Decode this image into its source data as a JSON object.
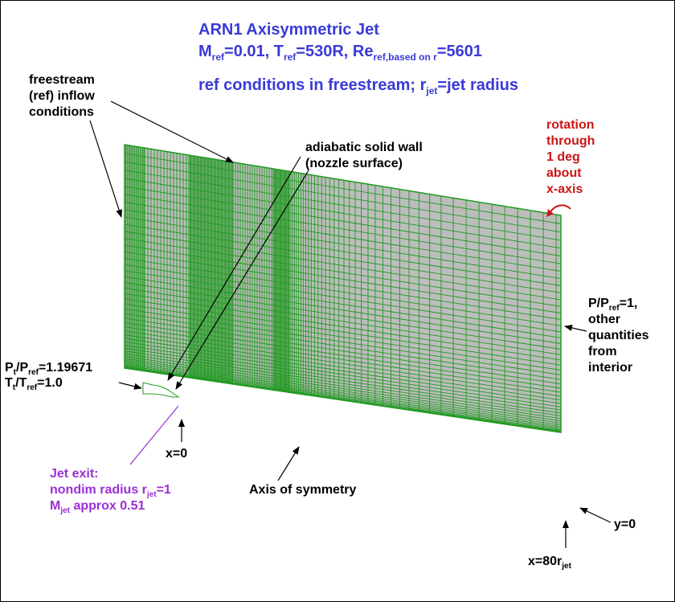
{
  "title": {
    "line1": "ARN1 Axisymmetric Jet",
    "line2": {
      "m": "M",
      "m_sub": "ref",
      "m_val": "=0.01, ",
      "t": "T",
      "t_sub": "ref",
      "t_val": "=530R, ",
      "re": "Re",
      "re_sub": "ref,based on r",
      "re_val": "=5601"
    },
    "line3": {
      "pre": "ref conditions in freestream; r",
      "sub": "jet",
      "post": "=jet radius"
    }
  },
  "labels": {
    "freestream": [
      "freestream",
      "(ref) inflow",
      "conditions"
    ],
    "wall": [
      "adiabatic solid wall",
      "(nozzle surface)"
    ],
    "rotation": [
      "rotation",
      "through",
      "1 deg",
      "about",
      "x-axis"
    ],
    "outflow": {
      "p": "P",
      "p_sub": "ref",
      "p_val": "=1,",
      "lines": [
        "other",
        "quantities",
        "from",
        "interior"
      ]
    },
    "inflow": {
      "pt": "P",
      "pt_sub1": "t",
      "pt_slash": "/P",
      "pt_sub2": "ref",
      "pt_val": "=1.19671",
      "tt": "T",
      "tt_sub1": "t",
      "tt_slash": "/T",
      "tt_sub2": "ref",
      "tt_val": "=1.0"
    },
    "x0": "x=0",
    "axis": "Axis of symmetry",
    "y0": "y=0",
    "x80": {
      "pre": "x=80r",
      "sub": "jet"
    },
    "jet_exit": {
      "line1": "Jet exit:",
      "line2_pre": "nondim radius r",
      "line2_sub": "jet",
      "line2_post": "=1",
      "line3_m": "M",
      "line3_sub": "jet",
      "line3_post": " approx 0.51"
    }
  },
  "colors": {
    "title": "#3a3ad8",
    "grid": "#1f9a1f",
    "grid_fill": "#bdbdbd",
    "rotation": "#cc1515",
    "jet_exit": "#9a2fd6"
  }
}
